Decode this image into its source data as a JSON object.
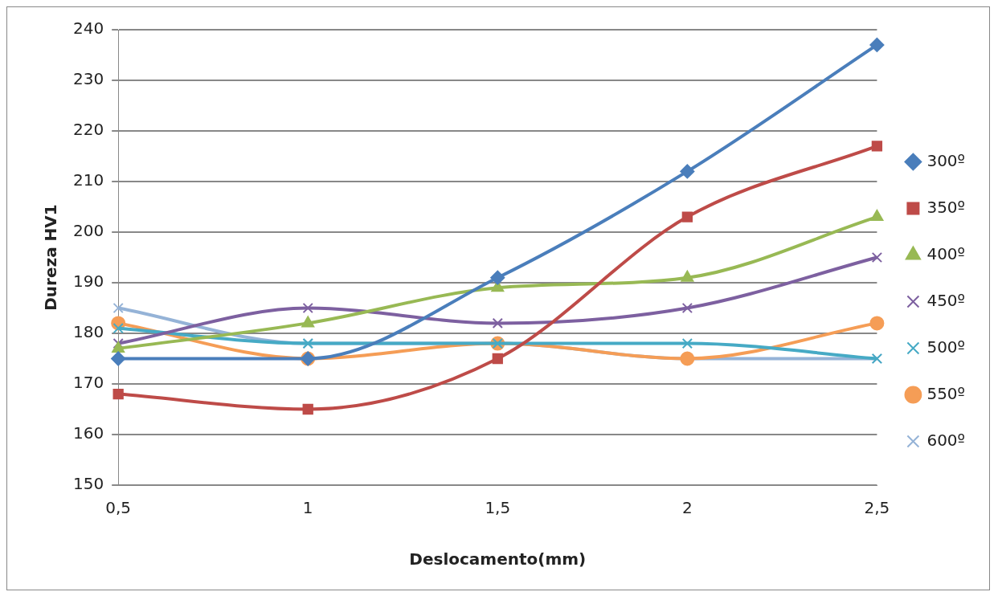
{
  "chart_data": {
    "type": "line",
    "xlabel": "Deslocamento(mm)",
    "ylabel": "Dureza HV1",
    "categories": [
      "0,5",
      "1",
      "1,5",
      "2",
      "2,5"
    ],
    "series": [
      {
        "name": "300º",
        "color": "#4a7ebb",
        "marker": "diamond",
        "values": [
          175,
          175,
          191,
          212,
          237
        ]
      },
      {
        "name": "350º",
        "color": "#be4b48",
        "marker": "square",
        "values": [
          168,
          165,
          175,
          203,
          217
        ]
      },
      {
        "name": "400º",
        "color": "#98b954",
        "marker": "triangle",
        "values": [
          177,
          182,
          189,
          191,
          203
        ]
      },
      {
        "name": "450º",
        "color": "#7d60a0",
        "marker": "cross",
        "values": [
          178,
          185,
          182,
          185,
          195
        ]
      },
      {
        "name": "500º",
        "color": "#46aac5",
        "marker": "cross",
        "values": [
          181,
          178,
          178,
          178,
          175
        ]
      },
      {
        "name": "550º",
        "color": "#f59d56",
        "marker": "circle",
        "values": [
          182,
          175,
          178,
          175,
          182
        ]
      },
      {
        "name": "600º",
        "color": "#95b3d7",
        "marker": "cross",
        "values": [
          185,
          178,
          178,
          175,
          175
        ]
      }
    ],
    "ylim": [
      150,
      240
    ],
    "yticks": [
      150,
      160,
      170,
      180,
      190,
      200,
      210,
      220,
      230,
      240
    ],
    "grid": "y",
    "legend": "right",
    "line_style": "solid"
  }
}
